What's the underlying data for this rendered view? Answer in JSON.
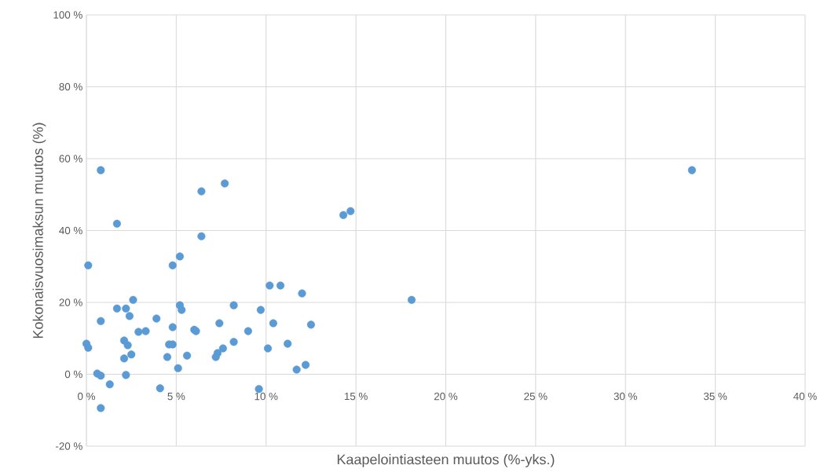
{
  "chart_data": {
    "type": "scatter",
    "xlabel": "Kaapelointiasteen muutos (%-yks.)",
    "ylabel": "Kokonaisvuosimaksun muutos (%)",
    "xlim": [
      0,
      40
    ],
    "ylim": [
      -20,
      100
    ],
    "xticks": [
      {
        "value": 0,
        "label": "0 %"
      },
      {
        "value": 5,
        "label": "5 %"
      },
      {
        "value": 10,
        "label": "10 %"
      },
      {
        "value": 15,
        "label": "15 %"
      },
      {
        "value": 20,
        "label": "20 %"
      },
      {
        "value": 25,
        "label": "25 %"
      },
      {
        "value": 30,
        "label": "30 %"
      },
      {
        "value": 35,
        "label": "35 %"
      },
      {
        "value": 40,
        "label": "40 %"
      }
    ],
    "yticks": [
      {
        "value": -20,
        "label": "-20 %"
      },
      {
        "value": 0,
        "label": "0 %"
      },
      {
        "value": 20,
        "label": "20 %"
      },
      {
        "value": 40,
        "label": "40 %"
      },
      {
        "value": 60,
        "label": "60 %"
      },
      {
        "value": 80,
        "label": "80 %"
      },
      {
        "value": 100,
        "label": "100 %"
      }
    ],
    "grid": true,
    "marker": "circle",
    "series": [
      {
        "color": "#5b9bd5",
        "x": [
          0.8,
          1.7,
          0.1,
          6.4,
          7.7,
          6.4,
          5.2,
          4.8,
          33.7,
          14.3,
          14.7,
          18.1,
          10.2,
          10.8,
          12.0,
          2.6,
          1.7,
          2.2,
          2.4,
          0.8,
          5.2,
          5.3,
          8.2,
          9.7,
          3.9,
          4.8,
          2.9,
          3.3,
          6.0,
          6.1,
          7.4,
          10.4,
          12.5,
          9.0,
          2.1,
          2.3,
          0.0,
          0.1,
          4.6,
          4.8,
          8.2,
          7.6,
          10.1,
          11.2,
          2.1,
          2.5,
          4.5,
          5.6,
          7.2,
          7.3,
          5.1,
          0.6,
          0.8,
          2.2,
          1.3,
          4.1,
          0.8,
          9.6,
          11.7,
          12.2
        ],
        "values": [
          56.8,
          41.9,
          30.3,
          50.9,
          53.1,
          38.4,
          32.8,
          30.3,
          56.8,
          44.3,
          45.4,
          20.7,
          24.7,
          24.7,
          22.5,
          20.7,
          18.3,
          18.3,
          16.2,
          14.8,
          19.2,
          17.9,
          19.2,
          17.9,
          15.5,
          13.1,
          11.8,
          12.0,
          12.4,
          12.0,
          14.2,
          14.2,
          13.8,
          12.0,
          9.4,
          8.1,
          8.5,
          7.4,
          8.3,
          8.3,
          9.0,
          7.2,
          7.2,
          8.5,
          4.4,
          5.5,
          4.8,
          5.2,
          4.8,
          5.9,
          1.7,
          0.2,
          -0.4,
          -0.2,
          -2.8,
          -3.9,
          -9.4,
          -4.1,
          1.3,
          2.6
        ]
      }
    ]
  }
}
